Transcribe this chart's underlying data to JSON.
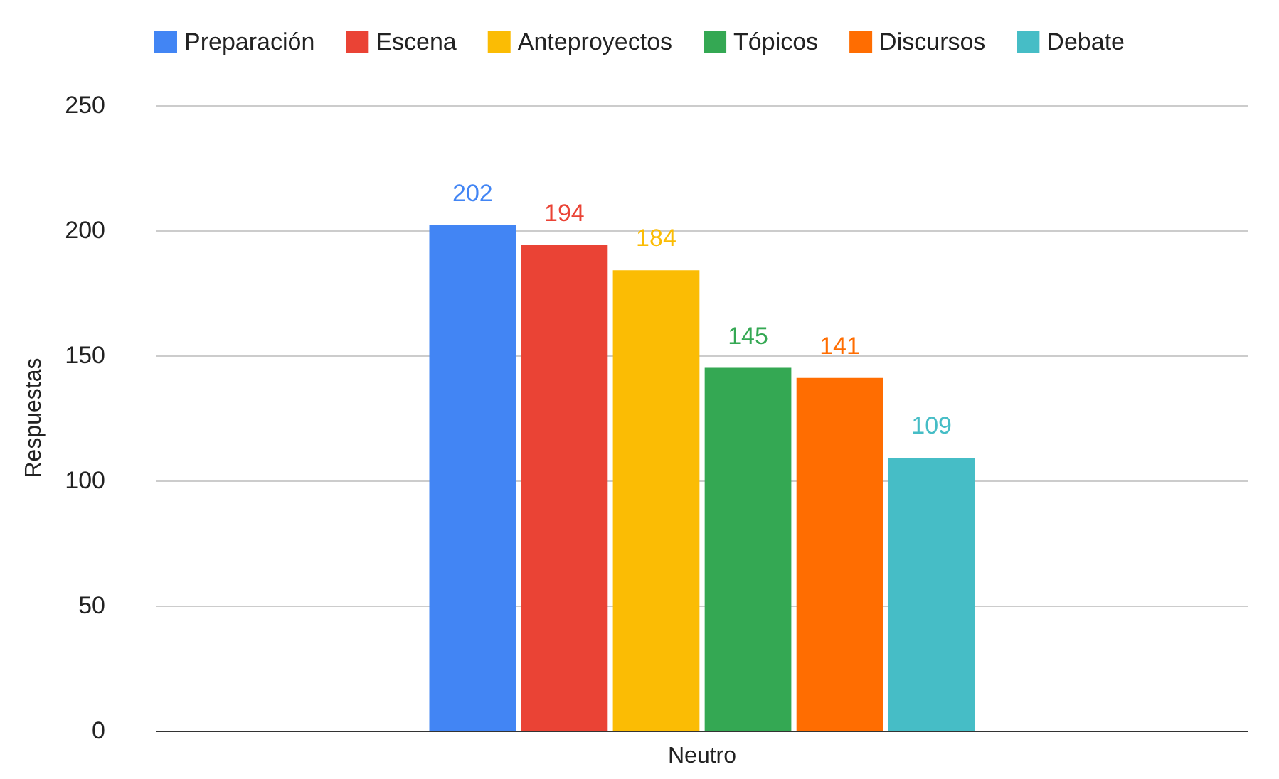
{
  "chart_data": {
    "type": "bar",
    "ylabel": "Respuestas",
    "categories": [
      "Neutro"
    ],
    "series": [
      {
        "name": "Preparación",
        "color": "#4285f4",
        "values": [
          202
        ]
      },
      {
        "name": "Escena",
        "color": "#ea4335",
        "values": [
          194
        ]
      },
      {
        "name": "Anteproyectos",
        "color": "#fbbc04",
        "values": [
          184
        ]
      },
      {
        "name": "Tópicos",
        "color": "#34a853",
        "values": [
          145
        ]
      },
      {
        "name": "Discursos",
        "color": "#ff6d01",
        "values": [
          141
        ]
      },
      {
        "name": "Debate",
        "color": "#46bdc6",
        "values": [
          109
        ]
      }
    ],
    "ylim": [
      0,
      250
    ],
    "yticks": [
      0,
      50,
      100,
      150,
      200,
      250
    ],
    "grid": "y",
    "legend": "top",
    "data_labels": true
  }
}
